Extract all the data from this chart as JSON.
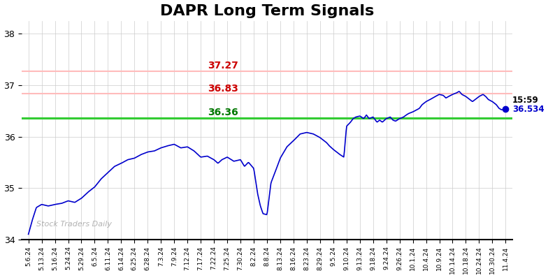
{
  "title": "DAPR Long Term Signals",
  "title_fontsize": 16,
  "title_fontweight": "bold",
  "watermark": "Stock Traders Daily",
  "hline_red1": 37.27,
  "hline_red2": 36.83,
  "hline_green": 36.36,
  "last_price": 36.534,
  "last_time": "15:59",
  "ylim": [
    34.0,
    38.25
  ],
  "yticks": [
    34,
    35,
    36,
    37,
    38
  ],
  "line_color": "#0000cc",
  "hline_red1_color": "#ffbbbb",
  "hline_red2_color": "#ffbbbb",
  "hline_green_color": "#33cc33",
  "label_red1_color": "#cc0000",
  "label_red2_color": "#cc0000",
  "label_green_color": "#007700",
  "background_color": "#ffffff",
  "grid_color": "#cccccc",
  "xtick_labels": [
    "5.6.24",
    "5.13.24",
    "5.16.24",
    "5.24.24",
    "5.29.24",
    "6.5.24",
    "6.11.24",
    "6.14.24",
    "6.25.24",
    "6.28.24",
    "7.3.24",
    "7.9.24",
    "7.12.24",
    "7.17.24",
    "7.22.24",
    "7.25.24",
    "7.30.24",
    "8.2.24",
    "8.8.24",
    "8.13.24",
    "8.16.24",
    "8.23.24",
    "8.29.24",
    "9.5.24",
    "9.10.24",
    "9.13.24",
    "9.18.24",
    "9.24.24",
    "9.26.24",
    "10.1.24",
    "10.4.24",
    "10.9.24",
    "10.14.24",
    "10.18.24",
    "10.24.24",
    "10.30.24",
    "11.4.24"
  ],
  "keypoints": [
    [
      0,
      34.1
    ],
    [
      0.3,
      34.38
    ],
    [
      0.6,
      34.62
    ],
    [
      1.0,
      34.68
    ],
    [
      1.5,
      34.65
    ],
    [
      2.0,
      34.68
    ],
    [
      2.5,
      34.7
    ],
    [
      3.0,
      34.75
    ],
    [
      3.5,
      34.72
    ],
    [
      4.0,
      34.8
    ],
    [
      4.5,
      34.92
    ],
    [
      5.0,
      35.02
    ],
    [
      5.5,
      35.18
    ],
    [
      6.0,
      35.3
    ],
    [
      6.5,
      35.42
    ],
    [
      7.0,
      35.48
    ],
    [
      7.5,
      35.55
    ],
    [
      8.0,
      35.58
    ],
    [
      8.5,
      35.65
    ],
    [
      9.0,
      35.7
    ],
    [
      9.5,
      35.72
    ],
    [
      10.0,
      35.78
    ],
    [
      10.5,
      35.82
    ],
    [
      11.0,
      35.85
    ],
    [
      11.5,
      35.78
    ],
    [
      12.0,
      35.8
    ],
    [
      12.5,
      35.72
    ],
    [
      13.0,
      35.6
    ],
    [
      13.5,
      35.62
    ],
    [
      14.0,
      35.55
    ],
    [
      14.3,
      35.48
    ],
    [
      14.6,
      35.55
    ],
    [
      15.0,
      35.6
    ],
    [
      15.5,
      35.52
    ],
    [
      16.0,
      35.55
    ],
    [
      16.3,
      35.42
    ],
    [
      16.6,
      35.5
    ],
    [
      17.0,
      35.38
    ],
    [
      17.3,
      34.88
    ],
    [
      17.5,
      34.65
    ],
    [
      17.7,
      34.5
    ],
    [
      18.0,
      34.48
    ],
    [
      18.3,
      35.1
    ],
    [
      18.6,
      35.3
    ],
    [
      19.0,
      35.58
    ],
    [
      19.5,
      35.8
    ],
    [
      20.0,
      35.92
    ],
    [
      20.5,
      36.05
    ],
    [
      21.0,
      36.08
    ],
    [
      21.5,
      36.05
    ],
    [
      22.0,
      35.98
    ],
    [
      22.5,
      35.88
    ],
    [
      22.7,
      35.82
    ],
    [
      23.0,
      35.75
    ],
    [
      23.5,
      35.65
    ],
    [
      23.8,
      35.6
    ],
    [
      24.0,
      36.2
    ],
    [
      24.3,
      36.28
    ],
    [
      24.5,
      36.35
    ],
    [
      24.7,
      36.38
    ],
    [
      25.0,
      36.4
    ],
    [
      25.3,
      36.35
    ],
    [
      25.5,
      36.42
    ],
    [
      25.7,
      36.35
    ],
    [
      26.0,
      36.38
    ],
    [
      26.3,
      36.28
    ],
    [
      26.5,
      36.32
    ],
    [
      26.7,
      36.28
    ],
    [
      27.0,
      36.35
    ],
    [
      27.3,
      36.38
    ],
    [
      27.5,
      36.32
    ],
    [
      27.7,
      36.3
    ],
    [
      28.0,
      36.35
    ],
    [
      28.3,
      36.38
    ],
    [
      28.5,
      36.42
    ],
    [
      28.7,
      36.45
    ],
    [
      29.0,
      36.48
    ],
    [
      29.3,
      36.52
    ],
    [
      29.5,
      36.55
    ],
    [
      29.7,
      36.62
    ],
    [
      30.0,
      36.68
    ],
    [
      30.3,
      36.72
    ],
    [
      30.5,
      36.75
    ],
    [
      30.7,
      36.78
    ],
    [
      31.0,
      36.82
    ],
    [
      31.3,
      36.8
    ],
    [
      31.5,
      36.75
    ],
    [
      31.7,
      36.78
    ],
    [
      32.0,
      36.82
    ],
    [
      32.3,
      36.85
    ],
    [
      32.5,
      36.88
    ],
    [
      32.7,
      36.82
    ],
    [
      33.0,
      36.78
    ],
    [
      33.3,
      36.72
    ],
    [
      33.5,
      36.68
    ],
    [
      33.7,
      36.72
    ],
    [
      34.0,
      36.78
    ],
    [
      34.3,
      36.82
    ],
    [
      34.5,
      36.78
    ],
    [
      34.7,
      36.72
    ],
    [
      35.0,
      36.68
    ],
    [
      35.3,
      36.62
    ],
    [
      35.5,
      36.55
    ],
    [
      35.7,
      36.52
    ],
    [
      36.0,
      36.534
    ]
  ]
}
